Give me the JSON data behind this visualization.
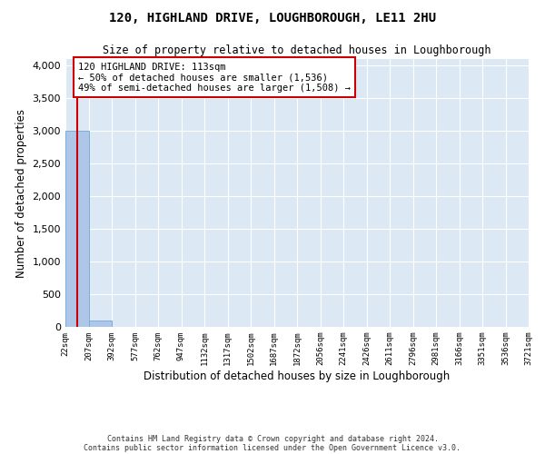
{
  "title": "120, HIGHLAND DRIVE, LOUGHBOROUGH, LE11 2HU",
  "subtitle": "Size of property relative to detached houses in Loughborough",
  "xlabel": "Distribution of detached houses by size in Loughborough",
  "ylabel": "Number of detached properties",
  "footnote1": "Contains HM Land Registry data © Crown copyright and database right 2024.",
  "footnote2": "Contains public sector information licensed under the Open Government Licence v3.0.",
  "bin_labels": [
    "22sqm",
    "207sqm",
    "392sqm",
    "577sqm",
    "762sqm",
    "947sqm",
    "1132sqm",
    "1317sqm",
    "1502sqm",
    "1687sqm",
    "1872sqm",
    "2056sqm",
    "2241sqm",
    "2426sqm",
    "2611sqm",
    "2796sqm",
    "2981sqm",
    "3166sqm",
    "3351sqm",
    "3536sqm",
    "3721sqm"
  ],
  "bar_heights": [
    3000,
    100,
    0,
    0,
    0,
    0,
    0,
    0,
    0,
    0,
    0,
    0,
    0,
    0,
    0,
    0,
    0,
    0,
    0,
    0
  ],
  "bar_color": "#aec6e8",
  "bar_edge_color": "#7bafd4",
  "ylim": [
    0,
    4100
  ],
  "yticks": [
    0,
    500,
    1000,
    1500,
    2000,
    2500,
    3000,
    3500,
    4000
  ],
  "property_label": "120 HIGHLAND DRIVE: 113sqm",
  "annotation_line1": "← 50% of detached houses are smaller (1,536)",
  "annotation_line2": "49% of semi-detached houses are larger (1,508) →",
  "vline_color": "#cc0000",
  "annotation_box_color": "#ffffff",
  "annotation_box_edge": "#cc0000",
  "background_color": "#dce9f5",
  "grid_color": "#ffffff"
}
